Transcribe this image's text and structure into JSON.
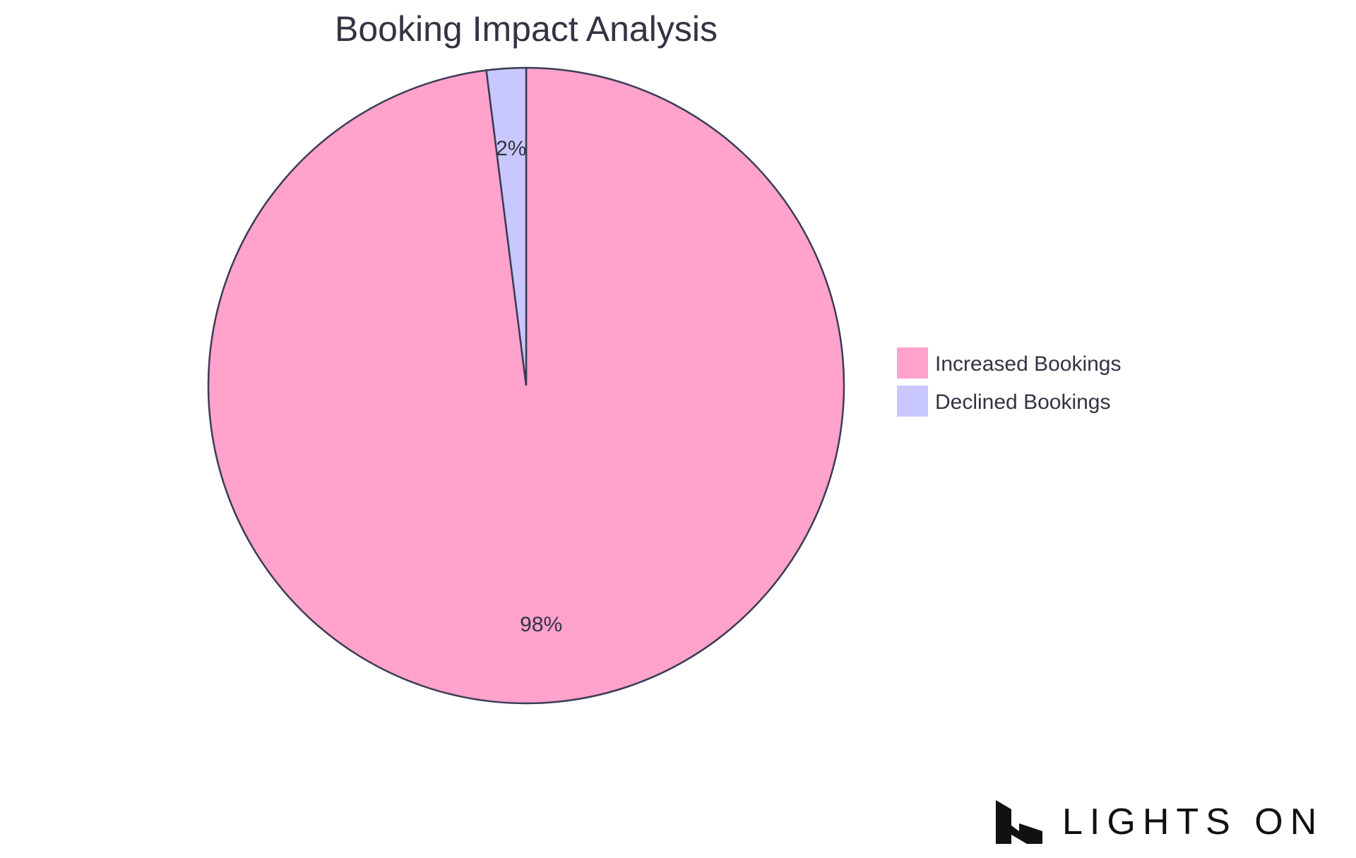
{
  "chart_data": {
    "type": "pie",
    "title": "Booking Impact Analysis",
    "slices": [
      {
        "label": "Increased Bookings",
        "value": 98,
        "display": "98%",
        "color": "#ffa2cc"
      },
      {
        "label": "Declined Bookings",
        "value": 2,
        "display": "2%",
        "color": "#c8c8ff"
      }
    ],
    "legend_position": "right",
    "stroke_color": "#3b3b55"
  },
  "logo": {
    "text": "LIGHTS ON"
  }
}
